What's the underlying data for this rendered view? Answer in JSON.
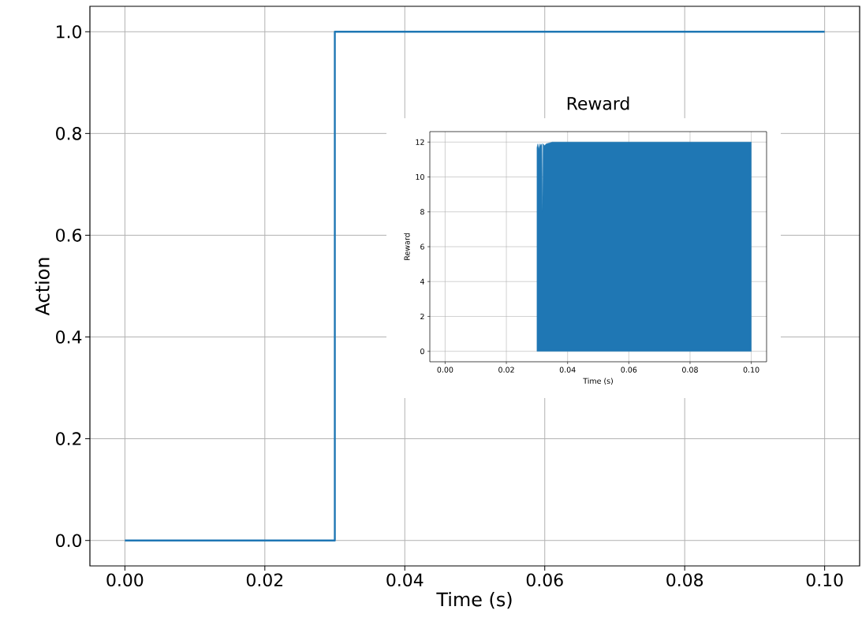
{
  "chart_data": [
    {
      "type": "step",
      "xlabel": "Time (s)",
      "ylabel": "Action",
      "x": [
        0,
        0.03,
        0.1
      ],
      "values": [
        0,
        1,
        1
      ],
      "color": "#1f77b4",
      "xlim": [
        -0.005,
        0.105
      ],
      "ylim": [
        -0.05,
        1.05
      ],
      "xticks": [
        {
          "value": 0,
          "label": "0.00"
        },
        {
          "value": 0.02,
          "label": "0.02"
        },
        {
          "value": 0.04,
          "label": "0.04"
        },
        {
          "value": 0.06,
          "label": "0.06"
        },
        {
          "value": 0.08,
          "label": "0.08"
        },
        {
          "value": 0.1,
          "label": "0.10"
        }
      ],
      "yticks": [
        {
          "value": 0,
          "label": "0.0"
        },
        {
          "value": 0.2,
          "label": "0.2"
        },
        {
          "value": 0.4,
          "label": "0.4"
        },
        {
          "value": 0.6,
          "label": "0.6"
        },
        {
          "value": 0.8,
          "label": "0.8"
        },
        {
          "value": 1,
          "label": "1.0"
        }
      ],
      "grid": true
    },
    {
      "type": "area",
      "title": "Reward",
      "xlabel": "Time (s)",
      "ylabel": "Reward",
      "x": [
        0.03,
        0.03,
        0.0303,
        0.0306,
        0.031,
        0.0313,
        0.0316,
        0.0318,
        0.032,
        0.0325,
        0.033,
        0.035,
        0.1
      ],
      "values": [
        0,
        11.7,
        11.9,
        11.6,
        11.9,
        11.8,
        11.9,
        8,
        11.9,
        11.8,
        11.9,
        12,
        12
      ],
      "color": "#1f77b4",
      "xlim": [
        -0.005,
        0.105
      ],
      "ylim": [
        -0.6,
        12.6
      ],
      "xticks": [
        {
          "value": 0,
          "label": "0.00"
        },
        {
          "value": 0.02,
          "label": "0.02"
        },
        {
          "value": 0.04,
          "label": "0.04"
        },
        {
          "value": 0.06,
          "label": "0.06"
        },
        {
          "value": 0.08,
          "label": "0.08"
        },
        {
          "value": 0.1,
          "label": "0.10"
        }
      ],
      "yticks": [
        0,
        2,
        4,
        6,
        8,
        10,
        12
      ],
      "grid": true
    }
  ]
}
